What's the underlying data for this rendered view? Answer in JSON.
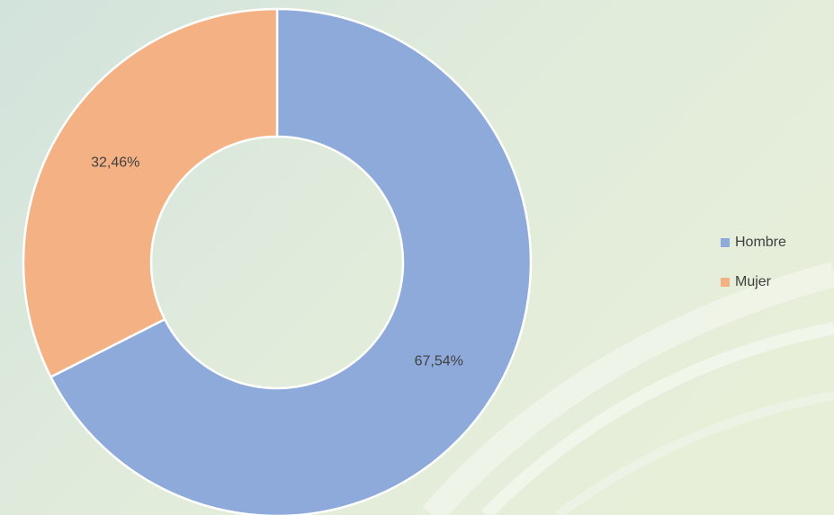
{
  "chart_data": {
    "type": "donut",
    "categories": [
      "Hombre",
      "Mujer"
    ],
    "values": [
      67.54,
      32.46
    ],
    "value_labels": [
      "67,54%",
      "32,46%"
    ],
    "colors": [
      "#8eaadb",
      "#f4b183"
    ],
    "legend": "right"
  }
}
